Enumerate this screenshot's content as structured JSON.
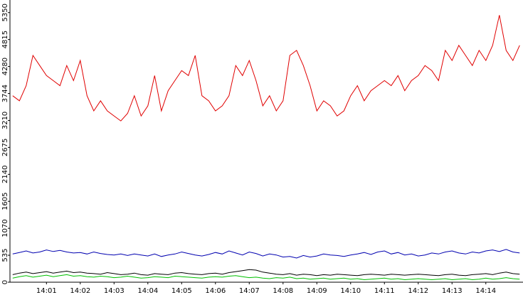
{
  "chart_data": {
    "type": "line",
    "x": [
      0,
      0.2,
      0.4,
      0.6,
      0.8,
      1,
      1.2,
      1.4,
      1.6,
      1.8,
      2,
      2.2,
      2.4,
      2.6,
      2.8,
      3,
      3.2,
      3.4,
      3.6,
      3.8,
      4,
      4.2,
      4.4,
      4.6,
      4.8,
      5,
      5.2,
      5.4,
      5.6,
      5.8,
      6,
      6.2,
      6.4,
      6.6,
      6.8,
      7,
      7.2,
      7.4,
      7.6,
      7.8,
      8,
      8.2,
      8.4,
      8.6,
      8.8,
      9,
      9.2,
      9.4,
      9.6,
      9.8,
      10,
      10.2,
      10.4,
      10.6,
      10.8,
      11,
      11.2,
      11.4,
      11.6,
      11.8,
      12,
      12.2,
      12.4,
      12.6,
      12.8,
      13,
      13.2,
      13.4,
      13.6,
      13.8,
      14,
      14.2,
      14.4,
      14.6,
      14.8,
      15
    ],
    "xlim": [
      -0.08,
      15.1
    ],
    "xticks": [
      {
        "value": 1,
        "label": "14:01"
      },
      {
        "value": 2,
        "label": "14:02"
      },
      {
        "value": 3,
        "label": "14:03"
      },
      {
        "value": 4,
        "label": "14:04"
      },
      {
        "value": 5,
        "label": "14:05"
      },
      {
        "value": 6,
        "label": "14:06"
      },
      {
        "value": 7,
        "label": "14:07"
      },
      {
        "value": 8,
        "label": "14:08"
      },
      {
        "value": 9,
        "label": "14:09"
      },
      {
        "value": 10,
        "label": "14:10"
      },
      {
        "value": 11,
        "label": "14:11"
      },
      {
        "value": 12,
        "label": "14:12"
      },
      {
        "value": 13,
        "label": "14:13"
      },
      {
        "value": 14,
        "label": "14:14"
      }
    ],
    "ylim": [
      0,
      5600
    ],
    "yticks": [
      0,
      535,
      1070,
      1605,
      2140,
      2675,
      3210,
      3744,
      4280,
      4815,
      5350
    ],
    "series": [
      {
        "color": "#e00000",
        "values": [
          3700,
          3600,
          3900,
          4500,
          4300,
          4100,
          4000,
          3900,
          4300,
          4000,
          4400,
          3700,
          3400,
          3600,
          3400,
          3300,
          3200,
          3350,
          3700,
          3300,
          3500,
          4100,
          3400,
          3800,
          4000,
          4200,
          4100,
          4500,
          3700,
          3600,
          3400,
          3500,
          3700,
          4300,
          4100,
          4400,
          4000,
          3500,
          3700,
          3400,
          3600,
          4500,
          4600,
          4300,
          3900,
          3400,
          3600,
          3500,
          3300,
          3400,
          3700,
          3900,
          3600,
          3800,
          3900,
          4000,
          3900,
          4100,
          3800,
          4000,
          4100,
          4300,
          4200,
          4000,
          4600,
          4400,
          4700,
          4500,
          4300,
          4600,
          4400,
          4700,
          5300,
          4600,
          4400,
          4700
        ]
      },
      {
        "color": "#0000b0",
        "values": [
          560,
          590,
          620,
          580,
          600,
          640,
          610,
          630,
          600,
          580,
          590,
          560,
          600,
          570,
          550,
          540,
          560,
          530,
          560,
          540,
          520,
          560,
          510,
          540,
          560,
          600,
          570,
          540,
          520,
          550,
          590,
          560,
          620,
          580,
          540,
          600,
          570,
          520,
          560,
          540,
          500,
          510,
          480,
          530,
          500,
          520,
          560,
          540,
          530,
          510,
          540,
          560,
          590,
          550,
          600,
          620,
          560,
          590,
          540,
          560,
          520,
          540,
          580,
          560,
          600,
          620,
          580,
          560,
          600,
          580,
          620,
          640,
          610,
          650,
          600,
          580
        ]
      },
      {
        "color": "#000000",
        "values": [
          150,
          180,
          200,
          170,
          190,
          210,
          180,
          200,
          220,
          190,
          200,
          180,
          170,
          160,
          190,
          170,
          150,
          160,
          180,
          150,
          140,
          170,
          160,
          150,
          180,
          190,
          170,
          160,
          150,
          170,
          180,
          160,
          190,
          210,
          230,
          250,
          240,
          200,
          180,
          160,
          150,
          170,
          140,
          160,
          150,
          130,
          150,
          140,
          160,
          150,
          140,
          130,
          150,
          160,
          150,
          140,
          160,
          150,
          140,
          150,
          160,
          150,
          140,
          130,
          150,
          160,
          140,
          130,
          150,
          160,
          170,
          150,
          180,
          200,
          170,
          160
        ]
      },
      {
        "color": "#00c000",
        "values": [
          80,
          110,
          130,
          100,
          120,
          140,
          110,
          130,
          150,
          120,
          130,
          110,
          100,
          120,
          110,
          90,
          100,
          120,
          100,
          80,
          90,
          110,
          100,
          90,
          120,
          110,
          100,
          90,
          80,
          100,
          110,
          100,
          120,
          130,
          110,
          90,
          100,
          80,
          70,
          90,
          80,
          100,
          70,
          80,
          60,
          70,
          80,
          60,
          70,
          80,
          60,
          70,
          50,
          60,
          70,
          80,
          60,
          70,
          50,
          60,
          70,
          60,
          50,
          60,
          70,
          50,
          60,
          70,
          50,
          60,
          80,
          60,
          70,
          90,
          70,
          60
        ]
      }
    ]
  }
}
